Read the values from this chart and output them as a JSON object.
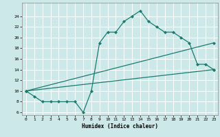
{
  "xlabel": "Humidex (Indice chaleur)",
  "bg_color": "#cce8e8",
  "line_color": "#1a7a6e",
  "grid_color": "#ffffff",
  "xlim": [
    -0.5,
    23.5
  ],
  "ylim": [
    5.5,
    26.5
  ],
  "xticks": [
    0,
    1,
    2,
    3,
    4,
    5,
    6,
    7,
    8,
    9,
    10,
    11,
    12,
    13,
    14,
    15,
    16,
    17,
    18,
    19,
    20,
    21,
    22,
    23
  ],
  "yticks": [
    6,
    8,
    10,
    12,
    14,
    16,
    18,
    20,
    22,
    24
  ],
  "series": [
    [
      0,
      10
    ],
    [
      1,
      9
    ],
    [
      2,
      8
    ],
    [
      3,
      8
    ],
    [
      4,
      8
    ],
    [
      5,
      8
    ],
    [
      6,
      8
    ],
    [
      7,
      6
    ],
    [
      8,
      10
    ],
    [
      9,
      19
    ],
    [
      10,
      21
    ],
    [
      11,
      21
    ],
    [
      12,
      23
    ],
    [
      13,
      24
    ],
    [
      14,
      25
    ],
    [
      15,
      23
    ],
    [
      16,
      22
    ],
    [
      17,
      21
    ],
    [
      18,
      21
    ],
    [
      19,
      20
    ],
    [
      20,
      19
    ],
    [
      21,
      15
    ],
    [
      22,
      15
    ],
    [
      23,
      14
    ]
  ],
  "line2": [
    [
      0,
      10
    ],
    [
      23,
      14
    ]
  ],
  "line3": [
    [
      0,
      10
    ],
    [
      23,
      19
    ]
  ]
}
